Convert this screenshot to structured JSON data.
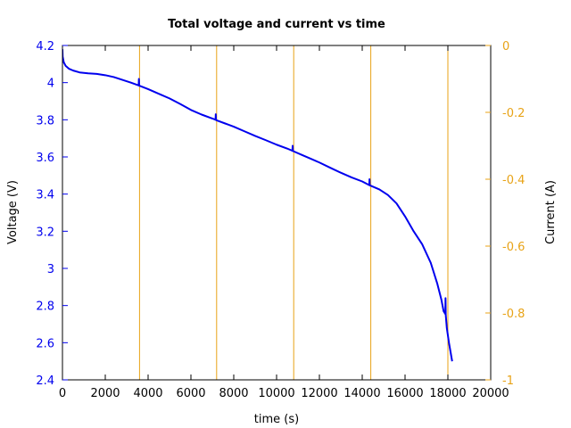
{
  "chart_data": {
    "type": "line",
    "title": "Total voltage and current vs time",
    "xlabel": "time (s)",
    "ylabel": "Voltage (V)",
    "y2label": "Current (A)",
    "xlim": [
      0,
      20000
    ],
    "ylim": [
      2.4,
      4.2
    ],
    "y2lim": [
      -1,
      0
    ],
    "x_ticks": [
      "0",
      "2000",
      "4000",
      "6000",
      "8000",
      "10000",
      "12000",
      "14000",
      "16000",
      "18000",
      "20000"
    ],
    "y_ticks": [
      "2.4",
      "2.6",
      "2.8",
      "3",
      "3.2",
      "3.4",
      "3.6",
      "3.8",
      "4",
      "4.2"
    ],
    "y2_ticks": [
      "-1",
      "-0.8",
      "-0.6",
      "-0.4",
      "-0.2",
      "0"
    ],
    "grid": false,
    "legend": "none",
    "colors": {
      "voltage": "#0000ee",
      "current": "#e8a317",
      "left_axis": "#0000ee",
      "right_axis": "#e8a317"
    },
    "series": [
      {
        "axis": "left",
        "color": "#0000ee",
        "x": [
          0,
          10,
          60,
          150,
          300,
          500,
          800,
          1200,
          1600,
          2000,
          2400,
          2800,
          3200,
          3560,
          3570,
          3575,
          3580,
          3600,
          4000,
          4500,
          5000,
          5500,
          6000,
          6500,
          7000,
          7150,
          7160,
          7165,
          7170,
          7200,
          7600,
          8000,
          8500,
          9000,
          9500,
          10000,
          10500,
          10740,
          10750,
          10755,
          10760,
          10800,
          11200,
          11600,
          12000,
          12500,
          13000,
          13500,
          14000,
          14330,
          14340,
          14345,
          14350,
          14400,
          14800,
          15200,
          15600,
          16000,
          16400,
          16800,
          17200,
          17500,
          17700,
          17800,
          17880,
          17890,
          17895,
          17900,
          17950,
          18050,
          18200
        ],
        "y": [
          4.18,
          4.14,
          4.11,
          4.09,
          4.075,
          4.065,
          4.055,
          4.05,
          4.047,
          4.04,
          4.03,
          4.015,
          4.0,
          3.985,
          4.02,
          4.01,
          3.985,
          3.983,
          3.965,
          3.94,
          3.915,
          3.885,
          3.853,
          3.828,
          3.807,
          3.8,
          3.83,
          3.82,
          3.799,
          3.797,
          3.78,
          3.763,
          3.738,
          3.713,
          3.69,
          3.666,
          3.645,
          3.633,
          3.66,
          3.65,
          3.632,
          3.63,
          3.61,
          3.59,
          3.57,
          3.542,
          3.515,
          3.49,
          3.468,
          3.448,
          3.48,
          3.47,
          3.447,
          3.445,
          3.425,
          3.395,
          3.35,
          3.28,
          3.2,
          3.13,
          3.03,
          2.92,
          2.83,
          2.77,
          2.755,
          2.84,
          2.8,
          2.75,
          2.68,
          2.6,
          2.5
        ]
      },
      {
        "axis": "right",
        "color": "#e8a317",
        "x": [
          0,
          0,
          0,
          3600,
          3600,
          3600,
          7200,
          7200,
          7200,
          10800,
          10800,
          10800,
          14400,
          14400,
          14400,
          18000,
          18000,
          18000
        ],
        "y": [
          0,
          -0.25,
          0,
          0,
          -1,
          0,
          0,
          -1,
          0,
          0,
          -1,
          0,
          0,
          -1,
          0,
          0,
          -1,
          0
        ]
      }
    ]
  }
}
